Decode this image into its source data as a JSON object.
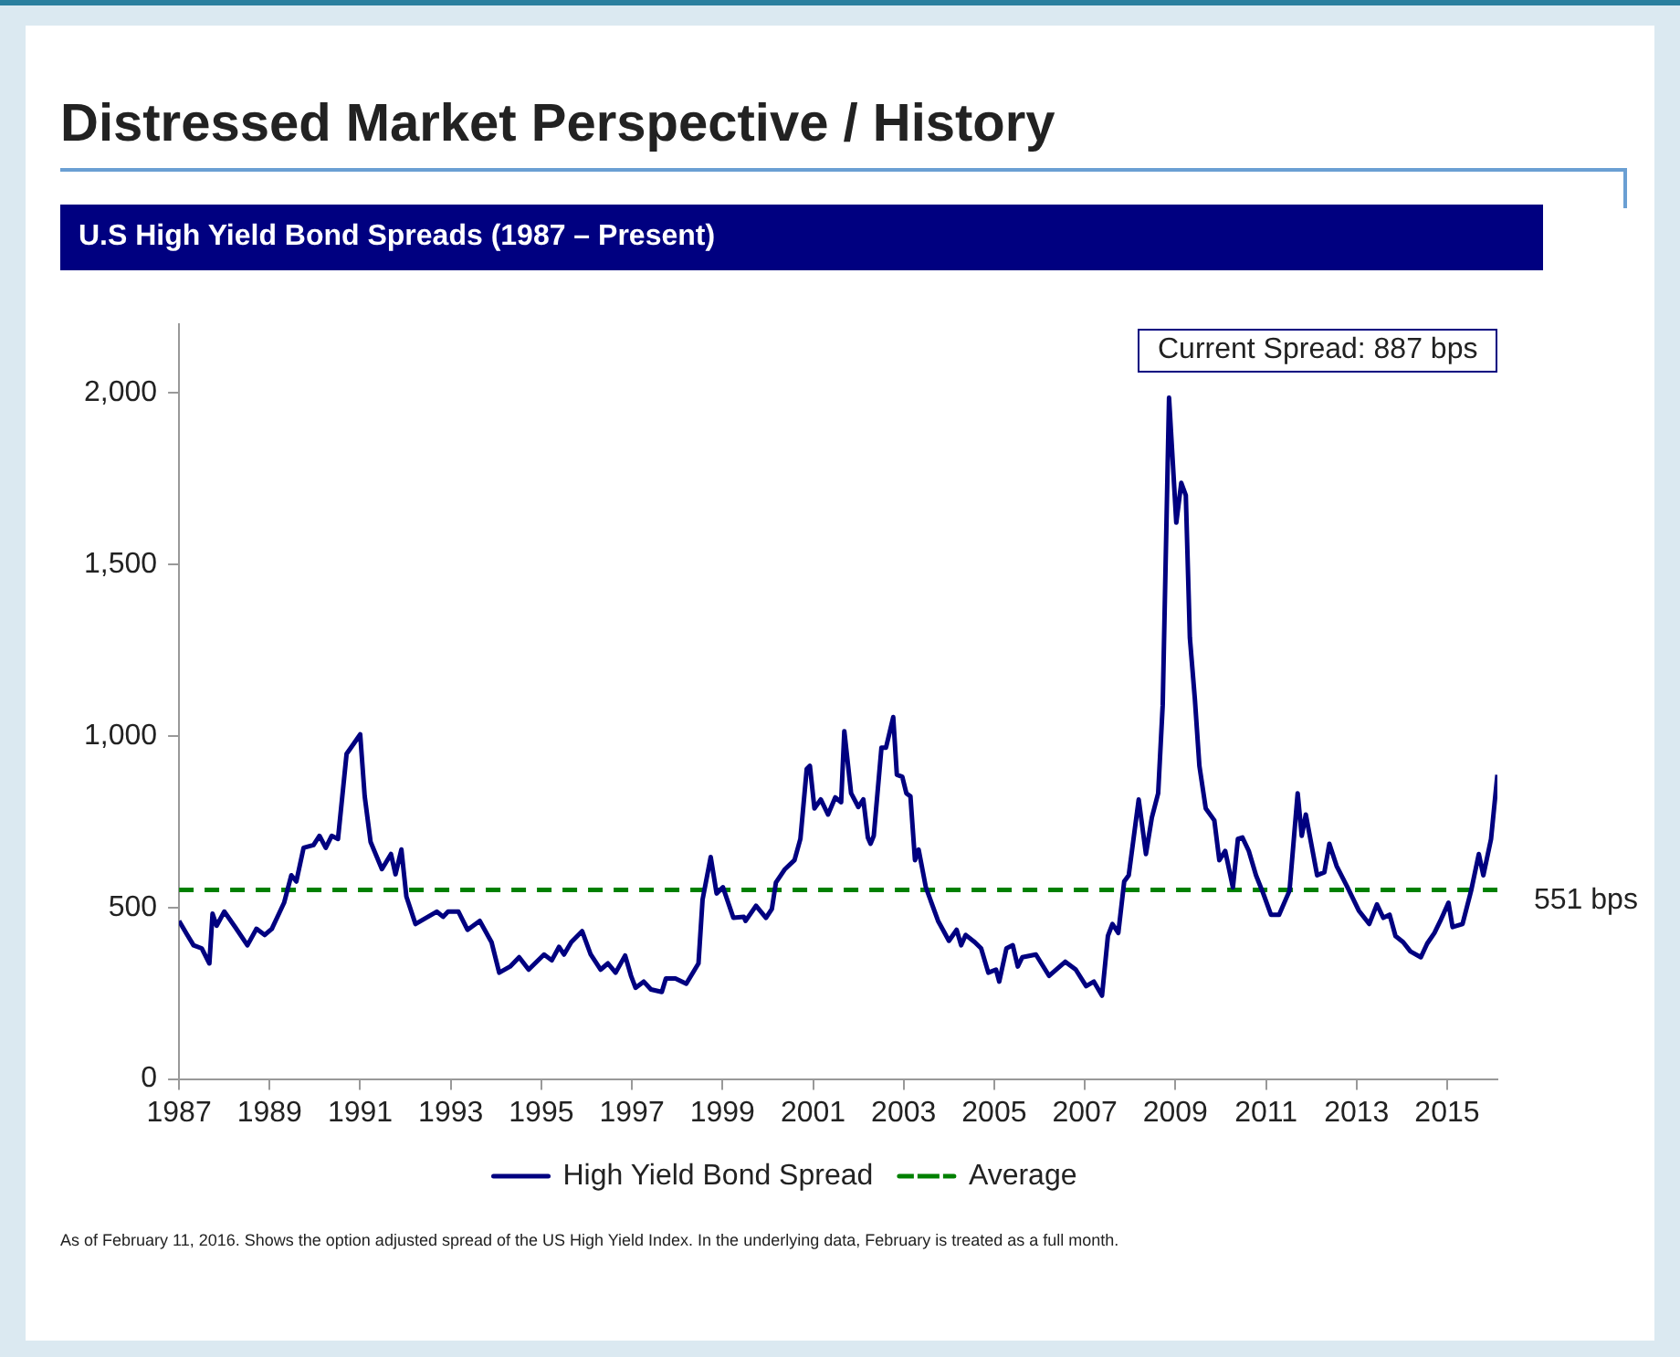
{
  "chart_data": {
    "type": "line",
    "title": "Distressed Market Perspective / History",
    "subtitle": "U.S High Yield Bond Spreads (1987 – Present)",
    "xlim": [
      1987,
      2016.11
    ],
    "xticks": [
      1987,
      1989,
      1991,
      1993,
      1995,
      1997,
      1999,
      2001,
      2003,
      2005,
      2007,
      2009,
      2011,
      2013,
      2015
    ],
    "ylim": [
      0,
      2200
    ],
    "yticks": [
      0,
      500,
      {
        "value": 1000,
        "label": "1,000"
      },
      {
        "value": 1500,
        "label": "1,500"
      },
      {
        "value": 2000,
        "label": "2,000"
      }
    ],
    "grid": false,
    "legend": "bottom",
    "marker": "none",
    "series": [
      {
        "name": "High Yield Bond Spread",
        "color": "#000080",
        "line_style": "solid",
        "x": [
          1987.0,
          1987.16,
          1987.32,
          1987.5,
          1987.67,
          1987.74,
          1987.83,
          1988.0,
          1988.24,
          1988.51,
          1988.71,
          1988.89,
          1989.05,
          1989.32,
          1989.48,
          1989.59,
          1989.75,
          1989.97,
          1990.1,
          1990.24,
          1990.37,
          1990.51,
          1990.7,
          1990.87,
          1991.0,
          1991.1,
          1991.23,
          1991.48,
          1991.68,
          1991.78,
          1991.91,
          1992.02,
          1992.22,
          1992.69,
          1992.83,
          1992.94,
          1993.17,
          1993.37,
          1993.64,
          1993.9,
          1994.07,
          1994.31,
          1994.51,
          1994.72,
          1995.06,
          1995.23,
          1995.39,
          1995.5,
          1995.66,
          1995.9,
          1996.09,
          1996.31,
          1996.47,
          1996.64,
          1996.85,
          1996.98,
          1997.08,
          1997.26,
          1997.42,
          1997.66,
          1997.75,
          1997.96,
          1998.2,
          1998.47,
          1998.56,
          1998.74,
          1998.87,
          1999.01,
          1999.24,
          1999.47,
          1999.51,
          1999.74,
          1999.96,
          2000.09,
          2000.18,
          2000.38,
          2000.59,
          2000.72,
          2000.86,
          2000.93,
          2001.03,
          2001.17,
          2001.33,
          2001.49,
          2001.62,
          2001.69,
          2001.84,
          2002.0,
          2002.11,
          2002.21,
          2002.27,
          2002.34,
          2002.51,
          2002.61,
          2002.77,
          2002.85,
          2002.97,
          2003.06,
          2003.15,
          2003.25,
          2003.33,
          2003.49,
          2003.76,
          2004.0,
          2004.17,
          2004.27,
          2004.37,
          2004.57,
          2004.71,
          2004.87,
          2005.04,
          2005.11,
          2005.27,
          2005.41,
          2005.52,
          2005.62,
          2005.92,
          2006.21,
          2006.57,
          2006.8,
          2007.03,
          2007.2,
          2007.38,
          2007.51,
          2007.61,
          2007.74,
          2007.87,
          2007.97,
          2008.19,
          2008.35,
          2008.48,
          2008.62,
          2008.72,
          2008.86,
          2009.02,
          2009.13,
          2009.23,
          2009.32,
          2009.43,
          2009.53,
          2009.67,
          2009.86,
          2009.97,
          2010.1,
          2010.27,
          2010.38,
          2010.48,
          2010.62,
          2010.78,
          2010.94,
          2011.11,
          2011.29,
          2011.52,
          2011.7,
          2011.79,
          2011.88,
          2012.13,
          2012.29,
          2012.4,
          2012.56,
          2012.8,
          2013.05,
          2013.28,
          2013.45,
          2013.59,
          2013.73,
          2013.86,
          2014.03,
          2014.19,
          2014.42,
          2014.56,
          2014.72,
          2014.85,
          2015.03,
          2015.12,
          2015.34,
          2015.53,
          2015.7,
          2015.8,
          2015.97,
          2016.11
        ],
        "values": [
          461,
          425,
          390,
          381,
          337,
          482,
          447,
          488,
          443,
          390,
          438,
          420,
          438,
          514,
          594,
          576,
          674,
          682,
          709,
          674,
          709,
          700,
          948,
          980,
          1005,
          824,
          691,
          612,
          656,
          597,
          669,
          532,
          452,
          488,
          473,
          488,
          488,
          435,
          461,
          399,
          310,
          328,
          355,
          319,
          363,
          346,
          385,
          363,
          399,
          431,
          363,
          319,
          337,
          310,
          360,
          301,
          266,
          284,
          261,
          254,
          293,
          293,
          278,
          337,
          523,
          647,
          541,
          559,
          470,
          473,
          461,
          505,
          470,
          496,
          573,
          612,
          638,
          700,
          904,
          913,
          789,
          815,
          771,
          821,
          807,
          1014,
          833,
          793,
          815,
          704,
          686,
          709,
          966,
          966,
          1055,
          887,
          881,
          833,
          824,
          638,
          669,
          559,
          461,
          403,
          435,
          390,
          420,
          399,
          381,
          310,
          319,
          284,
          381,
          390,
          328,
          355,
          363,
          301,
          342,
          319,
          271,
          284,
          243,
          417,
          452,
          426,
          576,
          594,
          815,
          656,
          762,
          833,
          1090,
          1986,
          1622,
          1738,
          1702,
          1286,
          1108,
          913,
          789,
          754,
          638,
          665,
          559,
          700,
          704,
          665,
          594,
          541,
          479,
          479,
          549,
          833,
          709,
          771,
          594,
          603,
          686,
          621,
          559,
          491,
          452,
          509,
          470,
          479,
          417,
          399,
          372,
          355,
          395,
          426,
          461,
          514,
          443,
          452,
          549,
          656,
          594,
          700,
          887
        ]
      },
      {
        "name": "Average",
        "color": "#008000",
        "line_style": "dashed",
        "x": [
          1987,
          2016.11
        ],
        "values": [
          551,
          551
        ]
      }
    ],
    "annotations": [
      "Current Spread: 887 bps",
      {
        "text": "551 bps",
        "x": 2016.11,
        "y": 551
      },
      "As of February 11, 2016. Shows the option adjusted spread of the US High Yield Index. In the underlying data, February is treated as a full month."
    ]
  }
}
